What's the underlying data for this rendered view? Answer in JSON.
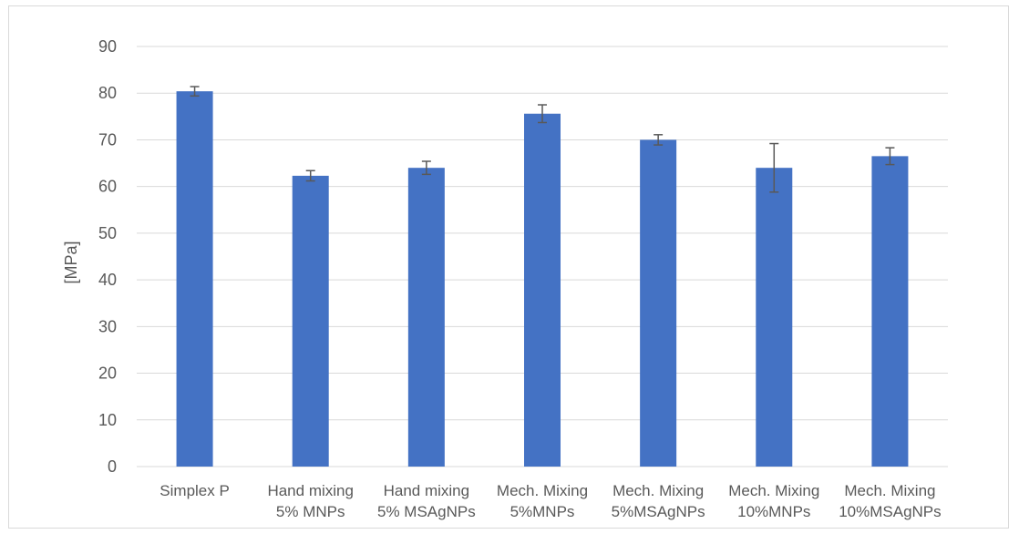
{
  "chart_data": {
    "type": "bar",
    "title": "",
    "xlabel": "",
    "ylabel": "[MPa]",
    "ylim": [
      0,
      90
    ],
    "yticks": [
      0,
      10,
      20,
      30,
      40,
      50,
      60,
      70,
      80,
      90
    ],
    "grid": true,
    "legend": "none",
    "bar_color": "#4472C4",
    "categories": [
      [
        "Simplex P"
      ],
      [
        "Hand mixing",
        "5% MNPs"
      ],
      [
        "Hand mixing",
        "5% MSAgNPs"
      ],
      [
        "Mech. Mixing",
        "5%MNPs"
      ],
      [
        "Mech. Mixing",
        "5%MSAgNPs"
      ],
      [
        "Mech. Mixing",
        "10%MNPs"
      ],
      [
        "Mech. Mixing",
        "10%MSAgNPs"
      ]
    ],
    "values": [
      80.4,
      62.3,
      64.0,
      75.6,
      70.0,
      64.0,
      66.5
    ],
    "error": [
      1.0,
      1.1,
      1.4,
      1.9,
      1.1,
      5.2,
      1.8
    ]
  }
}
